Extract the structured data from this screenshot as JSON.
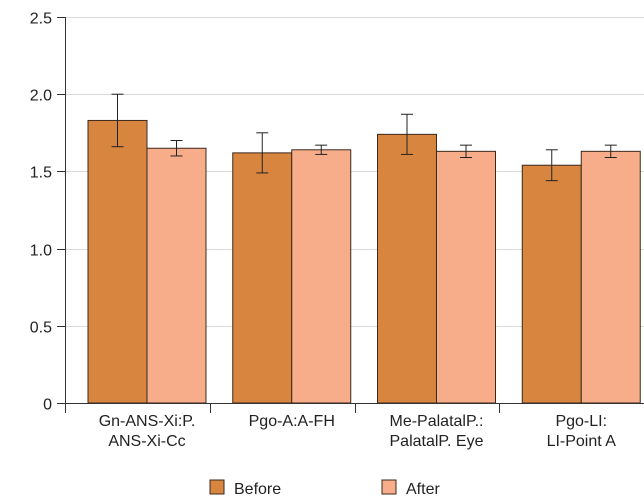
{
  "chart_data": {
    "type": "bar",
    "title": "",
    "xlabel": "",
    "ylabel": "",
    "ylim": [
      0,
      2.5
    ],
    "yticks": [
      "0",
      "0.5",
      "1.0",
      "1.5",
      "2.0",
      "2.5"
    ],
    "categories": [
      [
        "Gn-ANS-Xi:P.",
        "ANS-Xi-Cc"
      ],
      [
        "Pgo-A:A-FH"
      ],
      [
        "Me-PalatalP.:",
        "PalatalP. Eye"
      ],
      [
        "Pgo-LI:",
        "LI-Point A"
      ]
    ],
    "series": [
      {
        "name": "Before",
        "color": "#d88540",
        "values": [
          1.83,
          1.62,
          1.74,
          1.54
        ],
        "error": [
          0.17,
          0.13,
          0.13,
          0.1
        ]
      },
      {
        "name": "After",
        "color": "#f7ad8a",
        "values": [
          1.65,
          1.64,
          1.63,
          1.63
        ],
        "error": [
          0.05,
          0.03,
          0.04,
          0.04
        ]
      }
    ],
    "grid": true,
    "legend_position": "bottom"
  }
}
